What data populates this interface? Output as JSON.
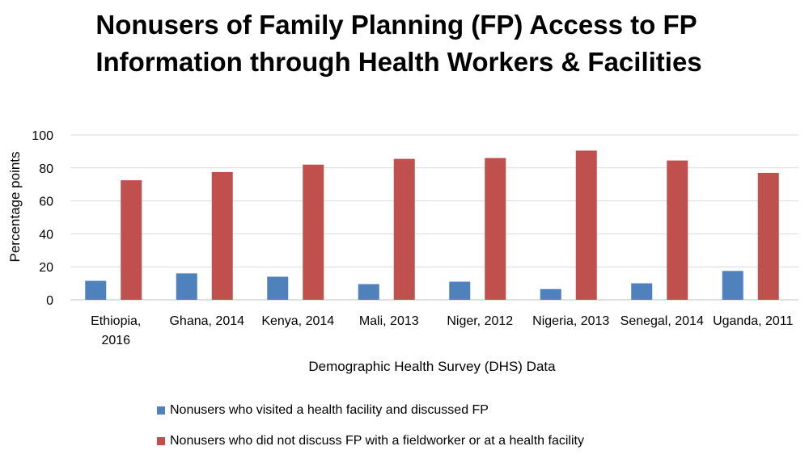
{
  "chart_data": {
    "type": "bar",
    "title_line1": "Nonusers of Family Planning (FP) Access to FP",
    "title_line2": "Information through Health Workers & Facilities",
    "xlabel": "Demographic Health Survey (DHS) Data",
    "ylabel": "Percentage points",
    "ylim": [
      0,
      100
    ],
    "yticks": [
      "0",
      "20",
      "40",
      "60",
      "80",
      "100"
    ],
    "grid": true,
    "legend_position": "bottom-left",
    "categories": [
      [
        "Ethiopia,",
        "2016"
      ],
      [
        "Ghana, 2014"
      ],
      [
        "Kenya, 2014"
      ],
      [
        "Mali, 2013"
      ],
      [
        "Niger, 2012"
      ],
      [
        "Nigeria, 2013"
      ],
      [
        "Senegal, 2014"
      ],
      [
        "Uganda, 2011"
      ]
    ],
    "series": [
      {
        "name": "Nonusers who visited a health facility and discussed FP",
        "color": "#4F81BD",
        "values": [
          11.5,
          16,
          14,
          9.5,
          11,
          6.5,
          10,
          17.5
        ]
      },
      {
        "name": "Nonusers who did not discuss FP with a fieldworker or at a health facility",
        "color": "#C0504D",
        "values": [
          72.5,
          77.5,
          82,
          85.5,
          86,
          90.5,
          84.5,
          77
        ]
      }
    ]
  }
}
